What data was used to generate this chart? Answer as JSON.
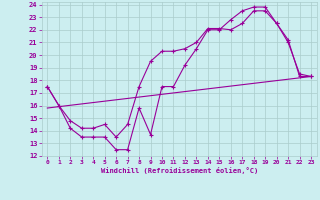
{
  "xlabel": "Windchill (Refroidissement éolien,°C)",
  "bg_color": "#cceef0",
  "grid_color": "#aacccc",
  "line_color": "#990099",
  "xlim": [
    -0.5,
    23.5
  ],
  "ylim": [
    12,
    24.2
  ],
  "yticks": [
    12,
    13,
    14,
    15,
    16,
    17,
    18,
    19,
    20,
    21,
    22,
    23,
    24
  ],
  "xticks": [
    0,
    1,
    2,
    3,
    4,
    5,
    6,
    7,
    8,
    9,
    10,
    11,
    12,
    13,
    14,
    15,
    16,
    17,
    18,
    19,
    20,
    21,
    22,
    23
  ],
  "line1_x": [
    0,
    1,
    2,
    3,
    4,
    5,
    6,
    7,
    8,
    9,
    10,
    11,
    12,
    13,
    14,
    15,
    16,
    17,
    18,
    19,
    20,
    21,
    22,
    23
  ],
  "line1_y": [
    17.5,
    16.0,
    14.2,
    13.5,
    13.5,
    13.5,
    12.5,
    12.5,
    15.8,
    13.7,
    17.5,
    17.5,
    19.2,
    20.5,
    22.0,
    22.0,
    22.8,
    23.5,
    23.8,
    23.8,
    22.5,
    21.2,
    18.3,
    18.3
  ],
  "line2_x": [
    0,
    1,
    2,
    3,
    4,
    5,
    6,
    7,
    8,
    9,
    10,
    11,
    12,
    13,
    14,
    15,
    16,
    17,
    18,
    19,
    20,
    21,
    22,
    23
  ],
  "line2_y": [
    17.5,
    16.0,
    14.8,
    14.2,
    14.2,
    14.5,
    13.5,
    14.5,
    17.5,
    19.5,
    20.3,
    20.3,
    20.5,
    21.0,
    22.1,
    22.1,
    22.0,
    22.5,
    23.5,
    23.5,
    22.5,
    21.0,
    18.5,
    18.3
  ],
  "line3_x": [
    0,
    23
  ],
  "line3_y": [
    15.8,
    18.3
  ]
}
